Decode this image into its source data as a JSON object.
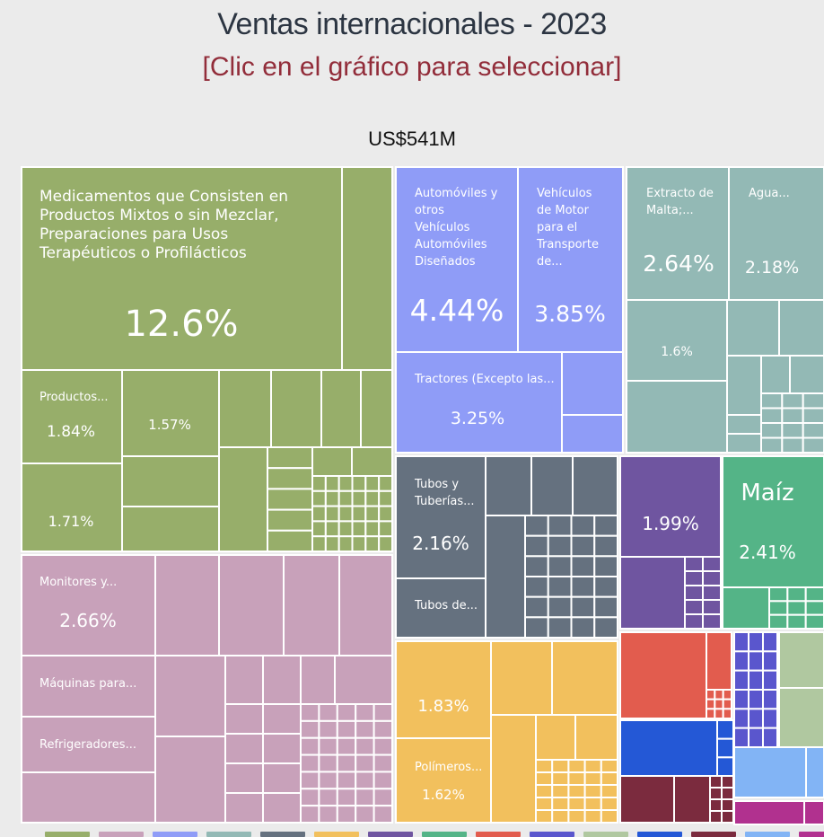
{
  "header": {
    "title": "Ventas internacionales - 2023",
    "subtitle": "[Clic en el gráfico para seleccionar]",
    "total": "US$541M"
  },
  "chart_data": {
    "type": "treemap",
    "title": "Ventas internacionales - 2023",
    "total": "US$541M",
    "groups": [
      {
        "color": "#97ae6a",
        "items": [
          {
            "name": "Medicamentos que Consisten en Productos Mixtos o sin Mezclar, Preparaciones para Usos Terapéuticos o Profilácticos",
            "share": 12.6
          },
          {
            "name": "Productos...",
            "share": 1.84
          },
          {
            "name": "",
            "share": 1.57
          },
          {
            "name": "",
            "share": 1.71
          }
        ]
      },
      {
        "color": "#c8a1ba",
        "items": [
          {
            "name": "Monitores y...",
            "share": 2.66
          },
          {
            "name": "Máquinas para...",
            "share": null
          },
          {
            "name": "Refrigeradores...",
            "share": null
          }
        ]
      },
      {
        "color": "#8f9cf7",
        "items": [
          {
            "name": "Automóviles y otros Vehículos Automóviles Diseñados Principalmente...",
            "share": 4.44
          },
          {
            "name": "Vehículos de Motor para el Transporte de...",
            "share": 3.85
          },
          {
            "name": "Tractores (Excepto las...",
            "share": 3.25
          }
        ]
      },
      {
        "color": "#93b9b5",
        "items": [
          {
            "name": "Extracto de Malta;...",
            "share": 2.64
          },
          {
            "name": "Agua...",
            "share": 2.18
          },
          {
            "name": "",
            "share": 1.6
          }
        ]
      },
      {
        "color": "#65717f",
        "items": [
          {
            "name": "Tubos y Tuberías...",
            "share": 2.16
          },
          {
            "name": "Tubos de...",
            "share": null
          }
        ]
      },
      {
        "color": "#f2c05d",
        "items": [
          {
            "name": "",
            "share": 1.83
          },
          {
            "name": "Polímeros...",
            "share": 1.62
          }
        ]
      },
      {
        "color": "#6f55a0",
        "items": [
          {
            "name": "",
            "share": 1.99
          }
        ]
      },
      {
        "color": "#54b487",
        "items": [
          {
            "name": "Maíz",
            "share": 2.41
          }
        ]
      },
      {
        "color": "#e25c4e",
        "items": []
      },
      {
        "color": "#5a56cd",
        "items": []
      },
      {
        "color": "#b0c8a0",
        "items": []
      },
      {
        "color": "#2458d6",
        "items": []
      },
      {
        "color": "#7b2b3e",
        "items": []
      },
      {
        "color": "#82b4f5",
        "items": []
      },
      {
        "color": "#b1318f",
        "items": []
      }
    ]
  }
}
